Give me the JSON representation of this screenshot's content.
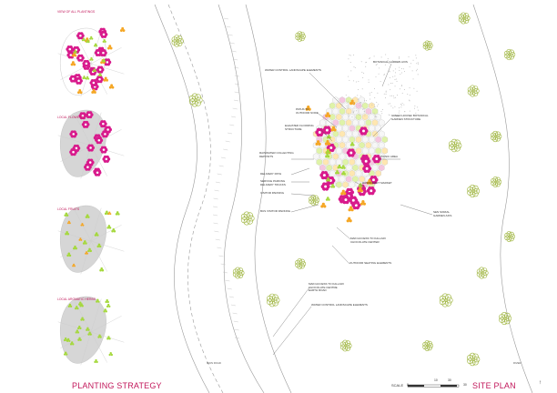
{
  "strategy": {
    "title": "PLANTING STRATEGY",
    "strips": [
      {
        "label": "VIEW OF ALL PLANTINGS"
      },
      {
        "label": "LOCAL FLOWERS"
      },
      {
        "label": "LOCAL FRUITS"
      },
      {
        "label": "LOCAL AROMATIC HERBS"
      }
    ]
  },
  "site_plan": {
    "title": "SITE PLAN",
    "scale_label": "SCALE",
    "scale_ticks": [
      "0",
      "10",
      "30"
    ],
    "scale_end": "30",
    "roads": {
      "left": "MAIN ROAD",
      "right": "RIVER"
    },
    "labels": {
      "botanical_garden_axis": "BOTANICAL GARDEN AXIS",
      "water_control_top": "WATER CONTROL LANDSCAPE ELEMENTS",
      "entry_outdoor": [
        "PATHS TO",
        "OUTDOOR NODE"
      ],
      "green_house": [
        "GREEN HOUSE/ BOTANICAL",
        "GARDEN STRUCTURE"
      ],
      "elevated_flooring": [
        "ELEVATED FLOORING",
        "STRUCTURE"
      ],
      "picnic_area": "PICNIC AREA",
      "rainwater": [
        "RAINWATER COLLECTING",
        "DEPOSITS"
      ],
      "delivery_path": "DELIVERY PATH",
      "service_parking": [
        "SERVICE PARKING",
        "DELIVERY TRUCKS"
      ],
      "handicraft_market": "HANDICRAFT MARKET",
      "visitor_parking": "VISITOR PARKING",
      "sensorial_garden": [
        "SEN SORIAL",
        "GARDEN AXIS"
      ],
      "bus_parking": "BUS VISITOR PARKING",
      "main_access_center": [
        "MAIN ACCESS TO KALLARI",
        "CHOCOLATE CENTER"
      ],
      "outdoor_seating": "OUTDOOR SEATING ELEMENTS",
      "main_access_earth": [
        "MAIN ACCESS TO KALLARI",
        "CHOCOLATE CENTRE",
        "EARTH ROAD"
      ],
      "water_control_bottom": "WATER CONTROL LANDSCAPE ELEMENTS"
    }
  },
  "colors": {
    "magenta": "#d81b8c",
    "orange": "#f5a623",
    "lime": "#a4d83a",
    "tree": "#9cb33a",
    "grey_blob": "#d6d6d6",
    "line": "#555555",
    "title": "#c2185b"
  }
}
